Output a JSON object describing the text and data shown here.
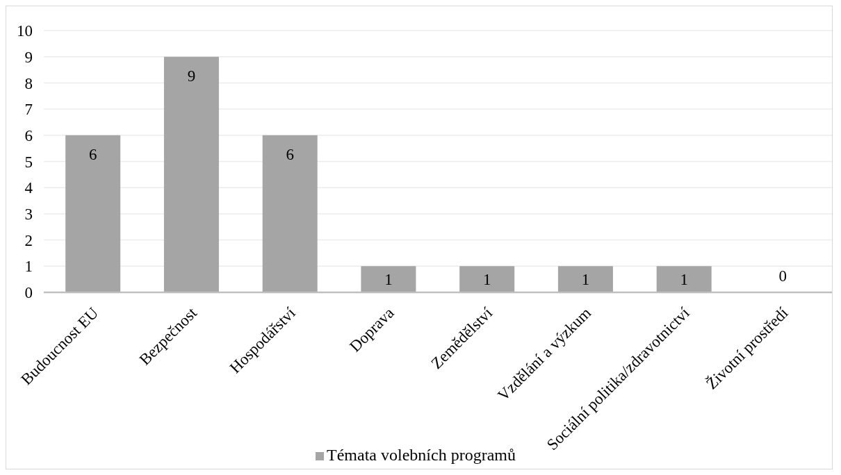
{
  "chart_data": {
    "type": "bar",
    "categories": [
      "Budoucnost EU",
      "Bezpečnost",
      "Hospodářství",
      "Doprava",
      "Zemědělství",
      "Vzdělání a výzkum",
      "Sociální politika/zdravotnictví",
      "Životní prostředí"
    ],
    "series": [
      {
        "name": "Témata volebních programů",
        "color": "#a5a5a5",
        "values": [
          6,
          9,
          6,
          1,
          1,
          1,
          1,
          0
        ]
      }
    ],
    "ylim": [
      0,
      10
    ],
    "yticks": [
      0,
      1,
      2,
      3,
      4,
      5,
      6,
      7,
      8,
      9,
      10
    ],
    "grid": "y",
    "legend": "bottom",
    "data_labels": true
  }
}
